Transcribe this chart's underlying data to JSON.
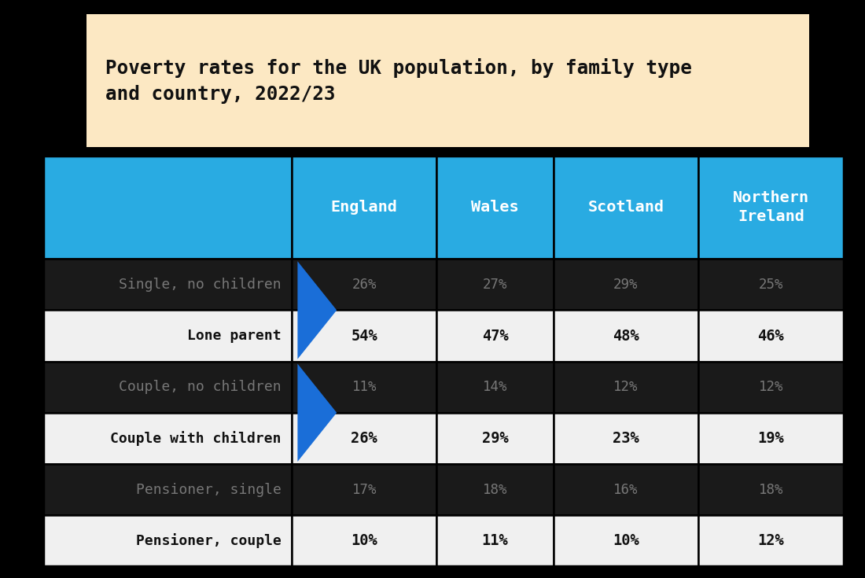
{
  "title_line1": "Poverty rates for the UK population, by family type",
  "title_line2": "and country, 2022/23",
  "title_bg": "#fce8c3",
  "columns": [
    "",
    "England",
    "Wales",
    "Scotland",
    "Northern\nIreland"
  ],
  "rows": [
    {
      "label": "Single, no children",
      "values": [
        "26%",
        "27%",
        "29%",
        "25%"
      ],
      "highlight": false
    },
    {
      "label": "Lone parent",
      "values": [
        "54%",
        "47%",
        "48%",
        "46%"
      ],
      "highlight": true
    },
    {
      "label": "Couple, no children",
      "values": [
        "11%",
        "14%",
        "12%",
        "12%"
      ],
      "highlight": false
    },
    {
      "label": "Couple with children",
      "values": [
        "26%",
        "29%",
        "23%",
        "19%"
      ],
      "highlight": true
    },
    {
      "label": "Pensioner, single",
      "values": [
        "17%",
        "18%",
        "16%",
        "18%"
      ],
      "highlight": false
    },
    {
      "label": "Pensioner, couple",
      "values": [
        "10%",
        "11%",
        "10%",
        "12%"
      ],
      "highlight": true
    }
  ],
  "header_bg": "#29abe2",
  "header_text": "#ffffff",
  "highlight_bg": "#f0f0f0",
  "dark_bg": "#1a1a1a",
  "dark_text": "#777777",
  "highlight_text": "#111111",
  "border_color": "#000000",
  "arrow_color": "#1a6ed8",
  "fig_bg": "#000000"
}
